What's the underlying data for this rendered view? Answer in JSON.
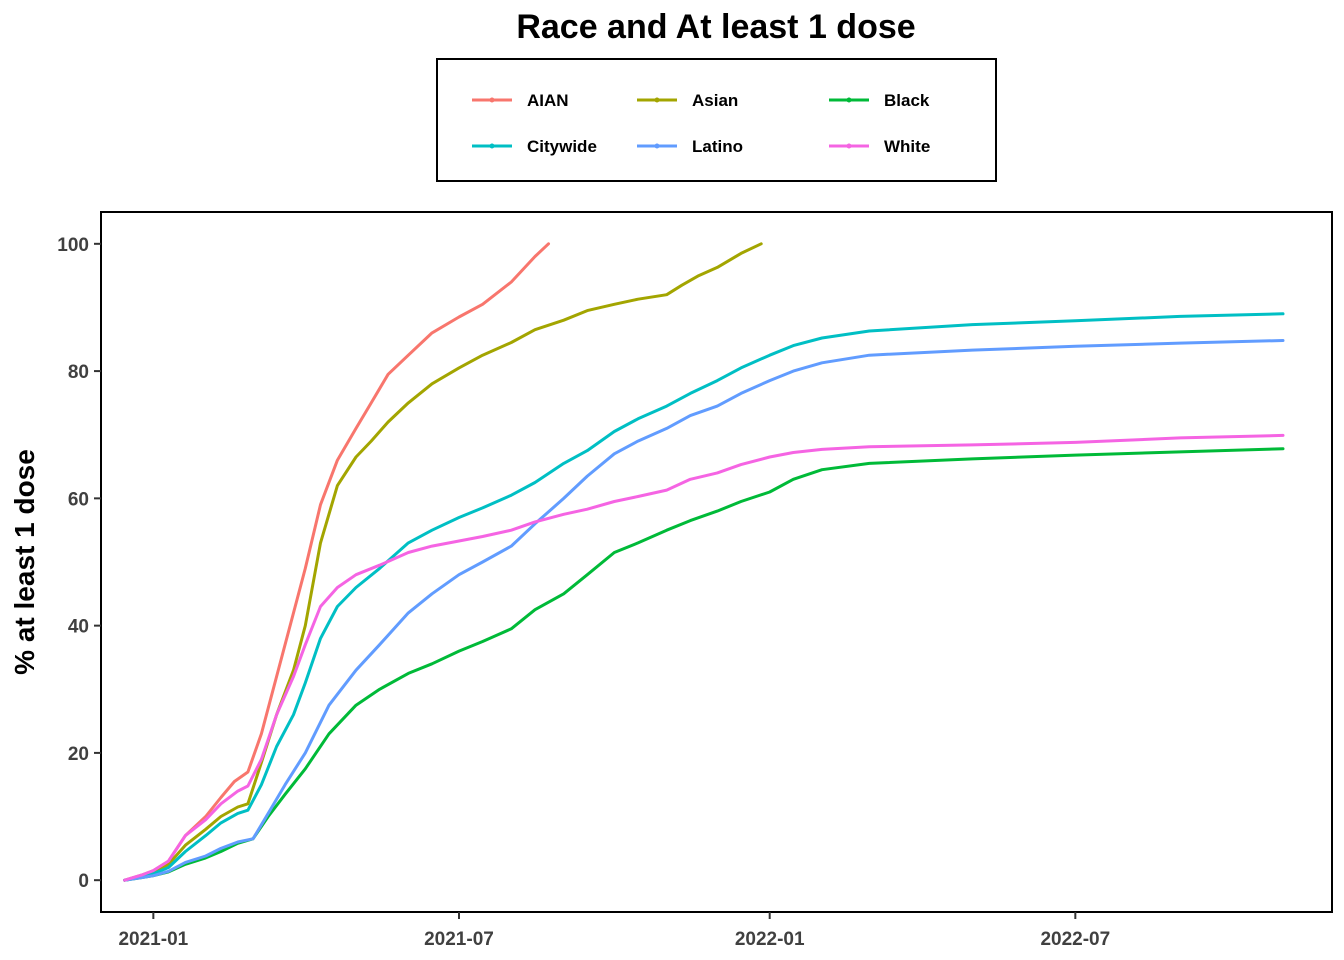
{
  "chart_data": {
    "type": "line",
    "title": "Race and At least 1 dose",
    "xlabel": "",
    "ylabel": "% at least 1 dose",
    "x_ticks": [
      "2021-01",
      "2021-07",
      "2022-01",
      "2022-07"
    ],
    "y_ticks": [
      0,
      20,
      40,
      60,
      80,
      100
    ],
    "xlim": [
      "2020-12-01",
      "2022-11-30"
    ],
    "ylim": [
      -5,
      105
    ],
    "grid": false,
    "legend_position": "top",
    "series": [
      {
        "name": "AIAN",
        "color": "#F8766D",
        "points": [
          [
            "2020-12-15",
            0
          ],
          [
            "2020-12-25",
            0.8
          ],
          [
            "2021-01-01",
            1.5
          ],
          [
            "2021-01-10",
            3
          ],
          [
            "2021-01-20",
            7
          ],
          [
            "2021-02-01",
            10
          ],
          [
            "2021-02-10",
            13
          ],
          [
            "2021-02-18",
            15.5
          ],
          [
            "2021-02-26",
            17
          ],
          [
            "2021-03-06",
            23
          ],
          [
            "2021-03-15",
            32
          ],
          [
            "2021-03-25",
            42
          ],
          [
            "2021-04-01",
            49
          ],
          [
            "2021-04-10",
            59
          ],
          [
            "2021-04-20",
            66
          ],
          [
            "2021-05-01",
            71
          ],
          [
            "2021-05-10",
            75
          ],
          [
            "2021-05-20",
            79.5
          ],
          [
            "2021-06-01",
            82.5
          ],
          [
            "2021-06-15",
            86
          ],
          [
            "2021-07-01",
            88.5
          ],
          [
            "2021-07-15",
            90.5
          ],
          [
            "2021-08-01",
            94
          ],
          [
            "2021-08-15",
            98
          ],
          [
            "2021-08-23",
            100
          ]
        ]
      },
      {
        "name": "Asian",
        "color": "#A3A500",
        "points": [
          [
            "2020-12-15",
            0
          ],
          [
            "2020-12-25",
            0.6
          ],
          [
            "2021-01-01",
            1.2
          ],
          [
            "2021-01-10",
            2.5
          ],
          [
            "2021-01-20",
            5.5
          ],
          [
            "2021-02-01",
            8
          ],
          [
            "2021-02-10",
            10
          ],
          [
            "2021-02-20",
            11.5
          ],
          [
            "2021-02-26",
            12
          ],
          [
            "2021-03-06",
            18.5
          ],
          [
            "2021-03-15",
            26
          ],
          [
            "2021-03-25",
            33
          ],
          [
            "2021-04-01",
            40
          ],
          [
            "2021-04-10",
            53
          ],
          [
            "2021-04-20",
            62
          ],
          [
            "2021-05-01",
            66.5
          ],
          [
            "2021-05-10",
            69
          ],
          [
            "2021-05-20",
            72
          ],
          [
            "2021-06-01",
            75
          ],
          [
            "2021-06-15",
            78
          ],
          [
            "2021-07-01",
            80.5
          ],
          [
            "2021-07-15",
            82.5
          ],
          [
            "2021-08-01",
            84.5
          ],
          [
            "2021-08-15",
            86.5
          ],
          [
            "2021-09-01",
            88
          ],
          [
            "2021-09-15",
            89.5
          ],
          [
            "2021-10-01",
            90.5
          ],
          [
            "2021-10-15",
            91.3
          ],
          [
            "2021-11-01",
            92
          ],
          [
            "2021-11-10",
            93.5
          ],
          [
            "2021-11-20",
            95
          ],
          [
            "2021-12-01",
            96.3
          ],
          [
            "2021-12-15",
            98.5
          ],
          [
            "2021-12-27",
            100
          ]
        ]
      },
      {
        "name": "Black",
        "color": "#00BA38",
        "points": [
          [
            "2020-12-15",
            0
          ],
          [
            "2020-12-25",
            0.4
          ],
          [
            "2021-01-01",
            0.7
          ],
          [
            "2021-01-10",
            1.3
          ],
          [
            "2021-01-20",
            2.5
          ],
          [
            "2021-02-01",
            3.5
          ],
          [
            "2021-02-10",
            4.5
          ],
          [
            "2021-02-20",
            5.8
          ],
          [
            "2021-03-01",
            6.5
          ],
          [
            "2021-03-10",
            10
          ],
          [
            "2021-03-20",
            13.5
          ],
          [
            "2021-04-01",
            17.5
          ],
          [
            "2021-04-15",
            23
          ],
          [
            "2021-05-01",
            27.5
          ],
          [
            "2021-05-15",
            30
          ],
          [
            "2021-06-01",
            32.5
          ],
          [
            "2021-06-15",
            34
          ],
          [
            "2021-07-01",
            36
          ],
          [
            "2021-07-15",
            37.5
          ],
          [
            "2021-08-01",
            39.5
          ],
          [
            "2021-08-15",
            42.5
          ],
          [
            "2021-09-01",
            45
          ],
          [
            "2021-09-15",
            48
          ],
          [
            "2021-10-01",
            51.5
          ],
          [
            "2021-10-15",
            53
          ],
          [
            "2021-11-01",
            55
          ],
          [
            "2021-11-15",
            56.5
          ],
          [
            "2021-12-01",
            58
          ],
          [
            "2021-12-15",
            59.5
          ],
          [
            "2022-01-01",
            61
          ],
          [
            "2022-01-15",
            63
          ],
          [
            "2022-02-01",
            64.5
          ],
          [
            "2022-03-01",
            65.5
          ],
          [
            "2022-05-01",
            66.2
          ],
          [
            "2022-07-01",
            66.8
          ],
          [
            "2022-09-01",
            67.3
          ],
          [
            "2022-11-01",
            67.8
          ]
        ]
      },
      {
        "name": "Citywide",
        "color": "#00BFC4",
        "points": [
          [
            "2020-12-15",
            0
          ],
          [
            "2020-12-25",
            0.5
          ],
          [
            "2021-01-01",
            1
          ],
          [
            "2021-01-10",
            2
          ],
          [
            "2021-01-20",
            4.5
          ],
          [
            "2021-02-01",
            7
          ],
          [
            "2021-02-10",
            9
          ],
          [
            "2021-02-20",
            10.5
          ],
          [
            "2021-02-26",
            11
          ],
          [
            "2021-03-06",
            15
          ],
          [
            "2021-03-15",
            21
          ],
          [
            "2021-03-25",
            26
          ],
          [
            "2021-04-01",
            31
          ],
          [
            "2021-04-10",
            38
          ],
          [
            "2021-04-20",
            43
          ],
          [
            "2021-05-01",
            46
          ],
          [
            "2021-05-15",
            49
          ],
          [
            "2021-06-01",
            53
          ],
          [
            "2021-06-15",
            55
          ],
          [
            "2021-07-01",
            57
          ],
          [
            "2021-07-15",
            58.5
          ],
          [
            "2021-08-01",
            60.5
          ],
          [
            "2021-08-15",
            62.5
          ],
          [
            "2021-09-01",
            65.5
          ],
          [
            "2021-09-15",
            67.5
          ],
          [
            "2021-10-01",
            70.5
          ],
          [
            "2021-10-15",
            72.5
          ],
          [
            "2021-11-01",
            74.5
          ],
          [
            "2021-11-15",
            76.5
          ],
          [
            "2021-12-01",
            78.5
          ],
          [
            "2021-12-15",
            80.5
          ],
          [
            "2022-01-01",
            82.5
          ],
          [
            "2022-01-15",
            84
          ],
          [
            "2022-02-01",
            85.2
          ],
          [
            "2022-03-01",
            86.3
          ],
          [
            "2022-05-01",
            87.3
          ],
          [
            "2022-07-01",
            87.9
          ],
          [
            "2022-09-01",
            88.6
          ],
          [
            "2022-11-01",
            89
          ]
        ]
      },
      {
        "name": "Latino",
        "color": "#619CFF",
        "points": [
          [
            "2020-12-15",
            0
          ],
          [
            "2020-12-25",
            0.4
          ],
          [
            "2021-01-01",
            0.7
          ],
          [
            "2021-01-10",
            1.4
          ],
          [
            "2021-01-20",
            2.8
          ],
          [
            "2021-02-01",
            3.8
          ],
          [
            "2021-02-10",
            5
          ],
          [
            "2021-02-20",
            6
          ],
          [
            "2021-03-01",
            6.5
          ],
          [
            "2021-03-10",
            10.5
          ],
          [
            "2021-03-20",
            15
          ],
          [
            "2021-04-01",
            20
          ],
          [
            "2021-04-15",
            27.5
          ],
          [
            "2021-05-01",
            33
          ],
          [
            "2021-05-15",
            37
          ],
          [
            "2021-06-01",
            42
          ],
          [
            "2021-06-15",
            45
          ],
          [
            "2021-07-01",
            48
          ],
          [
            "2021-07-15",
            50
          ],
          [
            "2021-08-01",
            52.5
          ],
          [
            "2021-08-15",
            56
          ],
          [
            "2021-09-01",
            60
          ],
          [
            "2021-09-15",
            63.5
          ],
          [
            "2021-10-01",
            67
          ],
          [
            "2021-10-15",
            69
          ],
          [
            "2021-11-01",
            71
          ],
          [
            "2021-11-15",
            73
          ],
          [
            "2021-12-01",
            74.5
          ],
          [
            "2021-12-15",
            76.5
          ],
          [
            "2022-01-01",
            78.5
          ],
          [
            "2022-01-15",
            80
          ],
          [
            "2022-02-01",
            81.3
          ],
          [
            "2022-03-01",
            82.5
          ],
          [
            "2022-05-01",
            83.3
          ],
          [
            "2022-07-01",
            83.9
          ],
          [
            "2022-09-01",
            84.4
          ],
          [
            "2022-11-01",
            84.8
          ]
        ]
      },
      {
        "name": "White",
        "color": "#F564E3",
        "points": [
          [
            "2020-12-15",
            0
          ],
          [
            "2020-12-25",
            0.8
          ],
          [
            "2021-01-01",
            1.5
          ],
          [
            "2021-01-10",
            3
          ],
          [
            "2021-01-20",
            7
          ],
          [
            "2021-02-01",
            9.5
          ],
          [
            "2021-02-10",
            12
          ],
          [
            "2021-02-20",
            14
          ],
          [
            "2021-02-26",
            14.8
          ],
          [
            "2021-03-06",
            19
          ],
          [
            "2021-03-15",
            26
          ],
          [
            "2021-03-25",
            32
          ],
          [
            "2021-04-01",
            37
          ],
          [
            "2021-04-10",
            43
          ],
          [
            "2021-04-20",
            46
          ],
          [
            "2021-05-01",
            48
          ],
          [
            "2021-05-15",
            49.5
          ],
          [
            "2021-06-01",
            51.5
          ],
          [
            "2021-06-15",
            52.5
          ],
          [
            "2021-07-01",
            53.3
          ],
          [
            "2021-07-15",
            54
          ],
          [
            "2021-08-01",
            55
          ],
          [
            "2021-08-15",
            56.3
          ],
          [
            "2021-09-01",
            57.5
          ],
          [
            "2021-09-15",
            58.3
          ],
          [
            "2021-10-01",
            59.5
          ],
          [
            "2021-10-15",
            60.3
          ],
          [
            "2021-11-01",
            61.3
          ],
          [
            "2021-11-15",
            63
          ],
          [
            "2021-12-01",
            64
          ],
          [
            "2021-12-15",
            65.3
          ],
          [
            "2022-01-01",
            66.5
          ],
          [
            "2022-01-15",
            67.2
          ],
          [
            "2022-02-01",
            67.7
          ],
          [
            "2022-03-01",
            68.1
          ],
          [
            "2022-05-01",
            68.4
          ],
          [
            "2022-07-01",
            68.8
          ],
          [
            "2022-09-01",
            69.5
          ],
          [
            "2022-11-01",
            69.9
          ]
        ]
      }
    ]
  }
}
